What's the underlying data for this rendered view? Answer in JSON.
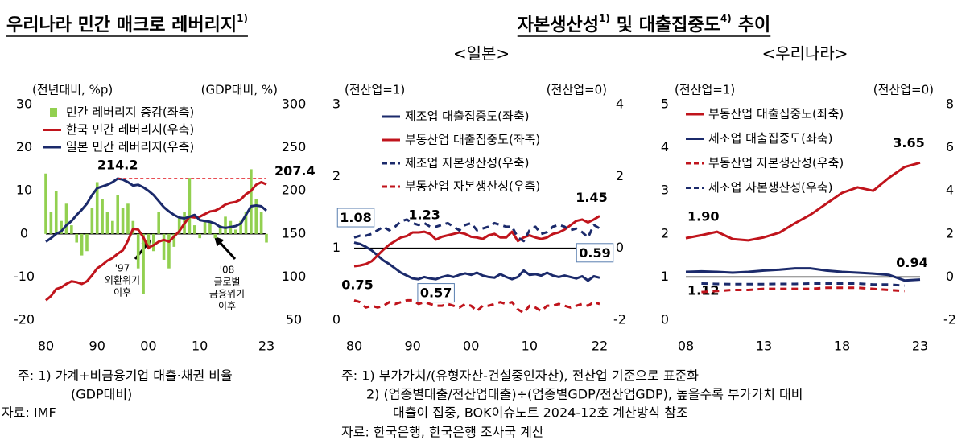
{
  "group_title": [
    "자본생산성",
    "1)",
    "및 대출집중도",
    "4)",
    "추이"
  ],
  "notes": {
    "left": [
      "주: 1) 가계+비금융기업 대출·채권 비율",
      "(GDP대비)",
      "자료: IMF"
    ],
    "right": [
      "주: 1) 부가가치/(유형자산-건설중인자산), 전산업 기준으로 표준화",
      "2) (업종별대출/전산업대출)÷(업종별GDP/전산업GDP), 높을수록 부가가치 대비",
      "대출이 집중, BOK이슈노트 2024-12호 계산방식 참조",
      "자료: 한국은행, 한국은행 조사국 계산"
    ]
  },
  "chart_data": [
    {
      "type": "bar",
      "title": "우리나라 민간 매크로 레버리지",
      "title_note": "1)",
      "ylabel": "(전년대비, %p)",
      "y2label": "(GDP대비, %)",
      "x": [
        1980,
        1981,
        1982,
        1983,
        1984,
        1985,
        1986,
        1987,
        1988,
        1989,
        1990,
        1991,
        1992,
        1993,
        1994,
        1995,
        1996,
        1997,
        1998,
        1999,
        2000,
        2001,
        2002,
        2003,
        2004,
        2005,
        2006,
        2007,
        2008,
        2009,
        2010,
        2011,
        2012,
        2013,
        2014,
        2015,
        2016,
        2017,
        2018,
        2019,
        2020,
        2021,
        2022,
        2023
      ],
      "xlim": [
        1980,
        2023
      ],
      "xticks": [
        {
          "value": 1980,
          "label": "80"
        },
        {
          "value": 1990,
          "label": "90"
        },
        {
          "value": 2000,
          "label": "00"
        },
        {
          "value": 2010,
          "label": "10"
        },
        {
          "value": 2023,
          "label": "23"
        }
      ],
      "ylim": [
        -20,
        30
      ],
      "yticks": [
        -20,
        -10,
        0,
        10,
        20,
        30
      ],
      "y2lim": [
        50,
        300
      ],
      "y2ticks": [
        50,
        100,
        150,
        200,
        250,
        300
      ],
      "hline": 0,
      "annotations": [
        [
          "'97",
          "외환위기",
          "이후"
        ],
        [
          "'08",
          "글로벌",
          "금융위기",
          "이후"
        ]
      ],
      "series": [
        {
          "name": "민간 레버리지 증감(좌축)",
          "type": "bar",
          "color": "#92d050",
          "values": [
            14,
            5,
            10,
            3,
            7,
            2,
            -2,
            -5,
            -4,
            6,
            12,
            8,
            5,
            3,
            9,
            6,
            7,
            3,
            -8,
            -14,
            -3,
            -4,
            5,
            -6,
            -8,
            -3,
            4,
            5,
            13,
            2,
            -1,
            3,
            3,
            -1,
            2,
            4,
            3,
            1,
            3,
            5,
            15,
            8,
            5,
            -2
          ]
        },
        {
          "name": "한국 민간 레버리지(우축)",
          "type": "line",
          "axis": "y2",
          "color": "#c0141c",
          "values": [
            73,
            78,
            86,
            88,
            92,
            95,
            94,
            92,
            95,
            102,
            110,
            114,
            119,
            122,
            127,
            131,
            142,
            156,
            155,
            146,
            134,
            137,
            141,
            143,
            141,
            147,
            153,
            162,
            170,
            169,
            170,
            173,
            176,
            177,
            180,
            184,
            186,
            187,
            190,
            196,
            200,
            207,
            210,
            207.4
          ],
          "value_labels": [
            null,
            null,
            null,
            null,
            null,
            null,
            null,
            null,
            null,
            null,
            null,
            null,
            null,
            null,
            null,
            null,
            null,
            null,
            null,
            null,
            null,
            null,
            null,
            null,
            null,
            null,
            null,
            null,
            null,
            null,
            null,
            null,
            null,
            null,
            null,
            null,
            null,
            null,
            null,
            null,
            null,
            null,
            null,
            "207.4"
          ]
        },
        {
          "name": "일본 민간 레버리지(우축)",
          "type": "line",
          "axis": "y2",
          "color": "#1b2a6b",
          "peak_line": true,
          "peak_line_color": "#e0141c",
          "values": [
            141,
            145,
            150,
            153,
            160,
            165,
            172,
            178,
            185,
            195,
            203,
            205,
            207,
            210,
            214.2,
            213,
            210,
            206,
            207,
            204,
            200,
            195,
            188,
            181,
            176,
            172,
            169,
            168,
            170,
            172,
            166,
            165,
            164,
            162,
            158,
            157,
            158,
            159,
            162,
            172,
            182,
            183,
            182,
            177
          ],
          "value_labels": [
            null,
            null,
            null,
            null,
            null,
            null,
            null,
            null,
            null,
            null,
            null,
            null,
            null,
            null,
            "214.2",
            null,
            null,
            null,
            null,
            null,
            null,
            null,
            null,
            null,
            null,
            null,
            null,
            null,
            null,
            null,
            null,
            null,
            null,
            null,
            null,
            null,
            null,
            null,
            null,
            null,
            null,
            null,
            null,
            null
          ]
        }
      ]
    },
    {
      "type": "line",
      "subtitle": "<일본>",
      "ylabel": "(전산업=1)",
      "y2label": "(전산업=0)",
      "x": [
        1980,
        1981,
        1982,
        1983,
        1984,
        1985,
        1986,
        1987,
        1988,
        1989,
        1990,
        1991,
        1992,
        1993,
        1994,
        1995,
        1996,
        1997,
        1998,
        1999,
        2000,
        2001,
        2002,
        2003,
        2004,
        2005,
        2006,
        2007,
        2008,
        2009,
        2010,
        2011,
        2012,
        2013,
        2014,
        2015,
        2016,
        2017,
        2018,
        2019,
        2020,
        2021,
        2022
      ],
      "xlim": [
        1980,
        2022
      ],
      "xticks": [
        {
          "value": 1980,
          "label": "80"
        },
        {
          "value": 1990,
          "label": "90"
        },
        {
          "value": 2000,
          "label": "00"
        },
        {
          "value": 2010,
          "label": "10"
        },
        {
          "value": 2022,
          "label": "22"
        }
      ],
      "ylim": [
        0,
        3
      ],
      "yticks": [
        0,
        1,
        2,
        3
      ],
      "y2lim": [
        -2,
        4
      ],
      "y2ticks": [
        -2,
        0,
        2,
        4
      ],
      "hline": 1,
      "series": [
        {
          "name": "제조업 대출집중도(좌축)",
          "color": "#1b2a6b",
          "label_box": true,
          "values": [
            1.08,
            1.06,
            1.02,
            0.97,
            0.9,
            0.83,
            0.78,
            0.72,
            0.66,
            0.62,
            0.58,
            0.57,
            0.6,
            0.58,
            0.57,
            0.6,
            0.62,
            0.6,
            0.63,
            0.65,
            0.63,
            0.66,
            0.62,
            0.6,
            0.59,
            0.64,
            0.6,
            0.57,
            0.6,
            0.69,
            0.63,
            0.64,
            0.62,
            0.66,
            0.62,
            0.6,
            0.62,
            0.6,
            0.58,
            0.61,
            0.55,
            0.61,
            0.59
          ],
          "value_labels": [
            "1.08",
            null,
            null,
            null,
            null,
            null,
            null,
            null,
            null,
            null,
            null,
            null,
            null,
            null,
            "0.57",
            null,
            null,
            null,
            null,
            null,
            null,
            null,
            null,
            null,
            null,
            null,
            null,
            null,
            null,
            null,
            null,
            null,
            null,
            null,
            null,
            null,
            null,
            null,
            null,
            null,
            null,
            null,
            "0.59"
          ]
        },
        {
          "name": "부동산업 대출집중도(좌축)",
          "color": "#c0141c",
          "values": [
            0.75,
            0.76,
            0.78,
            0.82,
            0.9,
            0.98,
            1.05,
            1.1,
            1.15,
            1.17,
            1.22,
            1.22,
            1.23,
            1.2,
            1.12,
            1.16,
            1.18,
            1.2,
            1.22,
            1.2,
            1.16,
            1.15,
            1.13,
            1.18,
            1.2,
            1.15,
            1.15,
            1.23,
            1.1,
            1.15,
            1.18,
            1.15,
            1.13,
            1.15,
            1.2,
            1.22,
            1.26,
            1.32,
            1.38,
            1.4,
            1.36,
            1.4,
            1.45
          ],
          "value_labels": [
            "0.75",
            null,
            null,
            null,
            null,
            null,
            null,
            null,
            null,
            null,
            null,
            null,
            "1.23",
            null,
            null,
            null,
            null,
            null,
            null,
            null,
            null,
            null,
            null,
            null,
            null,
            null,
            null,
            null,
            null,
            null,
            null,
            null,
            null,
            null,
            null,
            null,
            null,
            null,
            null,
            null,
            null,
            null,
            "1.45"
          ]
        },
        {
          "name": "제조업 자본생산성(우축)",
          "color": "#1b2a6b",
          "dash": true,
          "axis": "y2",
          "values": [
            0.3,
            0.35,
            0.35,
            0.4,
            0.5,
            0.6,
            0.5,
            0.6,
            0.75,
            0.8,
            0.7,
            0.65,
            0.7,
            0.6,
            0.6,
            0.65,
            0.7,
            0.6,
            0.5,
            0.65,
            0.7,
            0.5,
            0.55,
            0.6,
            0.7,
            0.65,
            0.6,
            0.6,
            0.3,
            0.2,
            0.5,
            0.6,
            0.4,
            0.45,
            0.6,
            0.65,
            0.6,
            0.5,
            0.55,
            0.45,
            0.3,
            0.65,
            0.55
          ]
        },
        {
          "name": "부동산업 자본생산성(우축)",
          "color": "#c0141c",
          "dash": true,
          "axis": "y2",
          "values": [
            -1.45,
            -1.5,
            -1.65,
            -1.6,
            -1.65,
            -1.6,
            -1.5,
            -1.55,
            -1.5,
            -1.45,
            -1.45,
            -1.55,
            -1.5,
            -1.55,
            -1.6,
            -1.6,
            -1.55,
            -1.6,
            -1.65,
            -1.55,
            -1.6,
            -1.75,
            -1.6,
            -1.6,
            -1.55,
            -1.5,
            -1.55,
            -1.5,
            -1.7,
            -1.8,
            -1.6,
            -1.65,
            -1.75,
            -1.6,
            -1.6,
            -1.55,
            -1.6,
            -1.65,
            -1.6,
            -1.55,
            -1.6,
            -1.5,
            -1.55
          ]
        }
      ]
    },
    {
      "type": "line",
      "subtitle": "<우리나라>",
      "ylabel": "(전산업=1)",
      "y2label": "(전산업=0)",
      "x": [
        2008,
        2009,
        2010,
        2011,
        2012,
        2013,
        2014,
        2015,
        2016,
        2017,
        2018,
        2019,
        2020,
        2021,
        2022,
        2023
      ],
      "xlim": [
        2008,
        2023
      ],
      "xticks": [
        {
          "value": 2008,
          "label": "08"
        },
        {
          "value": 2013,
          "label": "13"
        },
        {
          "value": 2018,
          "label": "18"
        },
        {
          "value": 2023,
          "label": "23"
        }
      ],
      "ylim": [
        0,
        5
      ],
      "yticks": [
        0,
        1,
        2,
        3,
        4,
        5
      ],
      "y2lim": [
        -2,
        8
      ],
      "y2ticks": [
        -2,
        0,
        2,
        4,
        6,
        8
      ],
      "hline": 1,
      "series": [
        {
          "name": "부동산업 대출집중도(좌축)",
          "color": "#c0141c",
          "values": [
            1.9,
            1.97,
            2.05,
            1.88,
            1.85,
            1.92,
            2.03,
            2.25,
            2.45,
            2.7,
            2.95,
            3.08,
            3.0,
            3.3,
            3.55,
            3.65
          ],
          "value_labels": [
            "1.90",
            null,
            null,
            null,
            null,
            null,
            null,
            null,
            null,
            null,
            null,
            null,
            null,
            null,
            null,
            "3.65"
          ]
        },
        {
          "name": "제조업 대출집중도(좌축)",
          "color": "#1b2a6b",
          "values": [
            1.12,
            1.13,
            1.12,
            1.1,
            1.12,
            1.15,
            1.17,
            1.2,
            1.2,
            1.15,
            1.12,
            1.1,
            1.08,
            1.05,
            0.92,
            0.94
          ],
          "value_labels": [
            "1.12",
            null,
            null,
            null,
            null,
            null,
            null,
            null,
            null,
            null,
            null,
            null,
            null,
            null,
            null,
            "0.94"
          ]
        },
        {
          "name": "부동산업 자본생산성(우축)",
          "color": "#c0141c",
          "dash": true,
          "axis": "y2",
          "values": [
            null,
            -0.7,
            -0.65,
            -0.6,
            -0.6,
            -0.55,
            -0.55,
            -0.55,
            -0.55,
            -0.5,
            -0.5,
            -0.5,
            -0.55,
            -0.6,
            -0.65,
            null
          ]
        },
        {
          "name": "제조업 자본생산성(우축)",
          "color": "#1b2a6b",
          "dash": true,
          "axis": "y2",
          "values": [
            null,
            -0.3,
            -0.32,
            -0.33,
            -0.33,
            -0.33,
            -0.32,
            -0.32,
            -0.3,
            -0.3,
            -0.3,
            -0.3,
            -0.35,
            -0.35,
            -0.4,
            null
          ]
        }
      ]
    }
  ]
}
